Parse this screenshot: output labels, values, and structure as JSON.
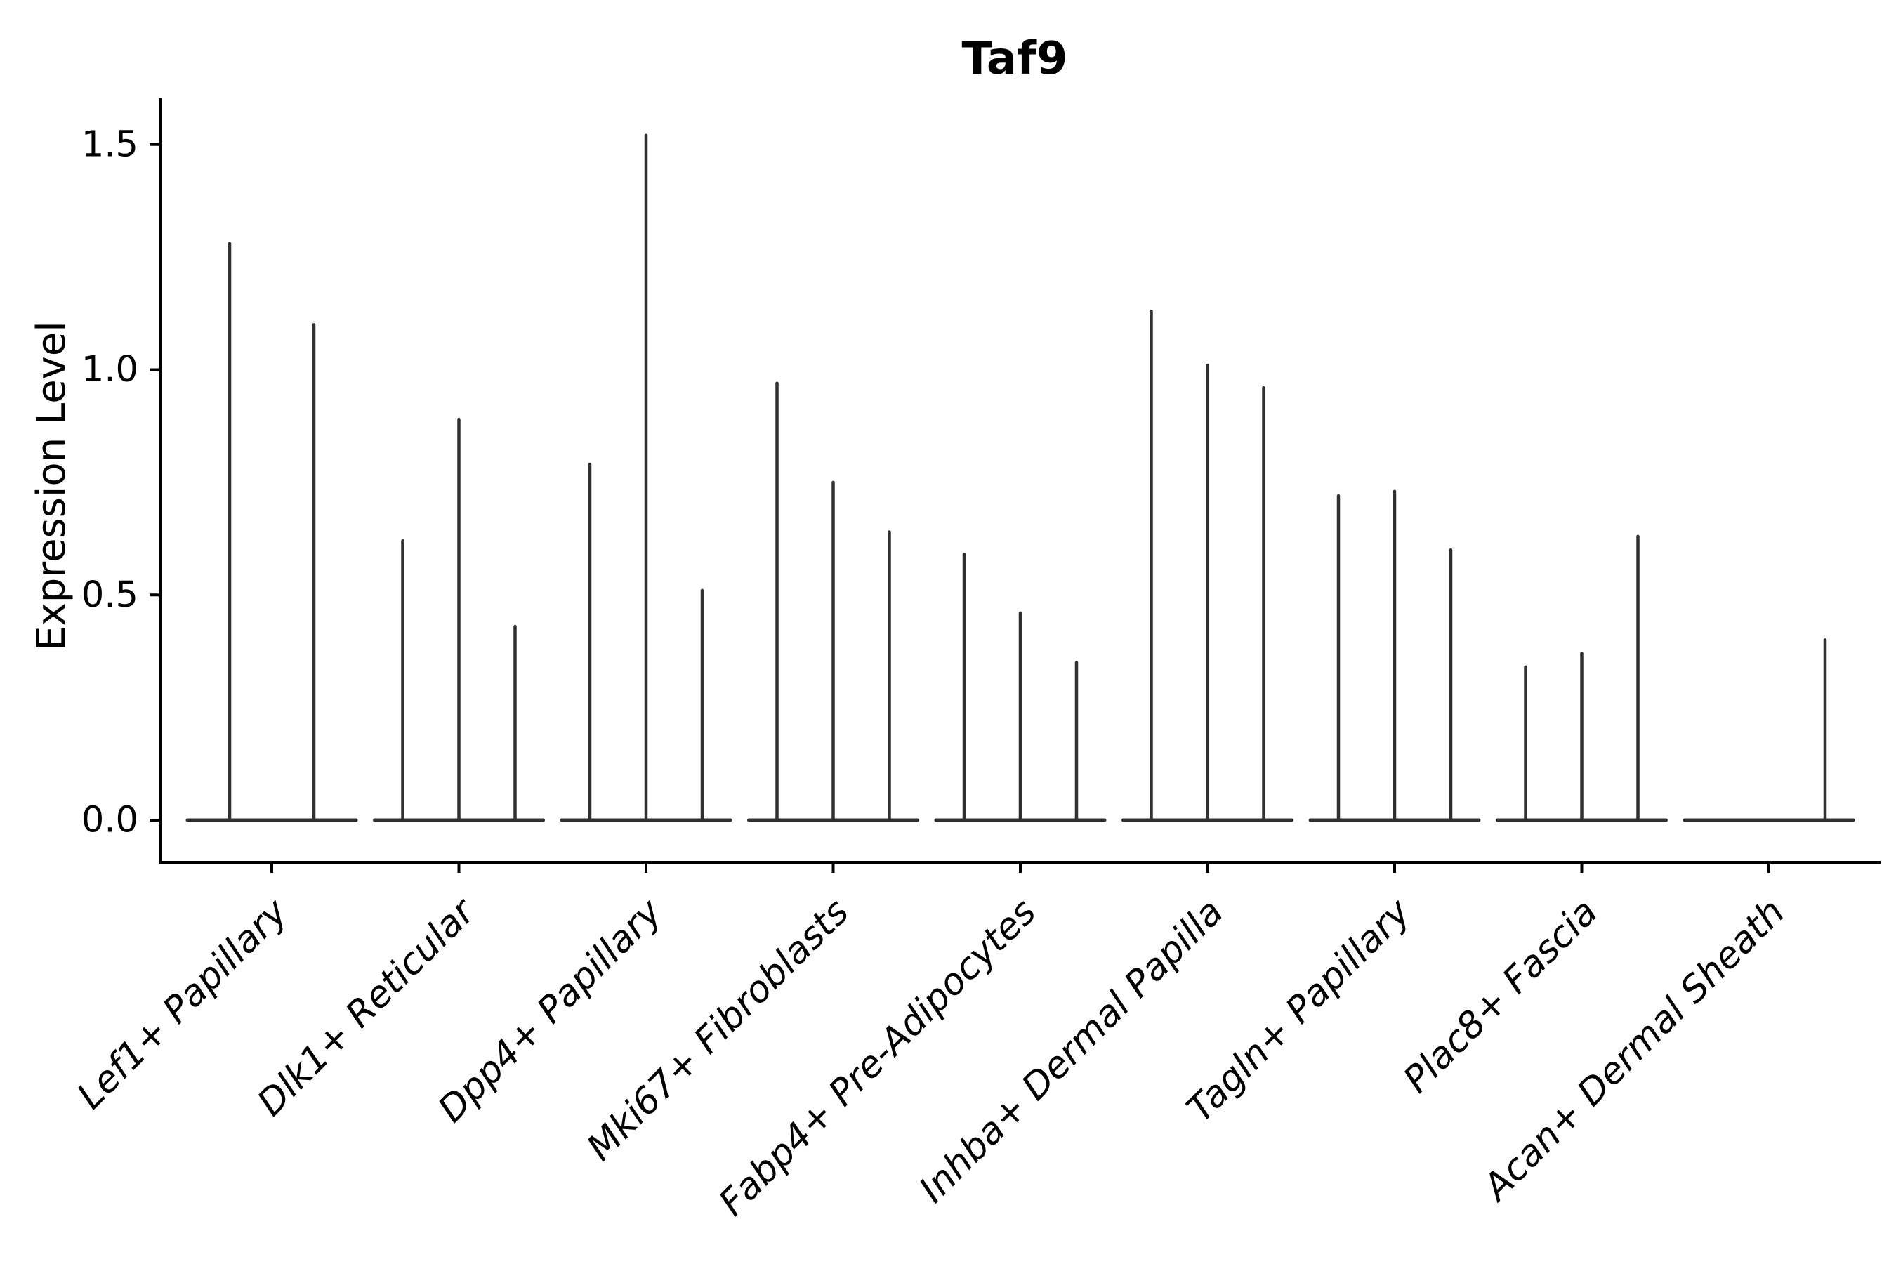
{
  "title": "Taf9",
  "axes": {
    "y_label": "Expression Level",
    "y_tick_labels": [
      "0.0",
      "0.5",
      "1.0",
      "1.5"
    ]
  },
  "chart_data": {
    "type": "violin",
    "title": "Taf9",
    "xlabel": "",
    "ylabel": "Expression Level",
    "ylim": [
      0,
      1.55
    ],
    "yticks": [
      0.0,
      0.5,
      1.0,
      1.5
    ],
    "grid": false,
    "legend": "none",
    "x_tick_rotation": 45,
    "style": "thin spike violins (near-zero width) with flat base at y=0, multiple violins per category",
    "categories": [
      "Lef1+ Papillary",
      "Dlk1+ Reticular",
      "Dpp4+ Papillary",
      "Mki67+ Fibroblasts",
      "Fabp4+ Pre-Adipocytes",
      "Inhba+ Dermal Papilla",
      "Tagln+ Papillary",
      "Plac8+ Fascia",
      "Acan+ Dermal Sheath"
    ],
    "groups": [
      {
        "category": "Lef1+ Papillary",
        "violins": [
          1.28,
          1.1
        ]
      },
      {
        "category": "Dlk1+ Reticular",
        "violins": [
          0.62,
          0.89,
          0.43
        ]
      },
      {
        "category": "Dpp4+ Papillary",
        "violins": [
          0.79,
          1.52,
          0.51
        ]
      },
      {
        "category": "Mki67+ Fibroblasts",
        "violins": [
          0.97,
          0.75,
          0.64
        ]
      },
      {
        "category": "Fabp4+ Pre-Adipocytes",
        "violins": [
          0.59,
          0.46,
          0.35
        ]
      },
      {
        "category": "Inhba+ Dermal Papilla",
        "violins": [
          1.13,
          1.01,
          0.96
        ]
      },
      {
        "category": "Tagln+ Papillary",
        "violins": [
          0.72,
          0.73,
          0.6
        ]
      },
      {
        "category": "Plac8+ Fascia",
        "violins": [
          0.34,
          0.37,
          0.63
        ]
      },
      {
        "category": "Acan+ Dermal Sheath",
        "violins": [
          0.0,
          0.0,
          0.4
        ]
      }
    ],
    "colors": {
      "violin": "#303030",
      "axis": "#000000",
      "text": "#000000",
      "background": "#ffffff"
    }
  }
}
